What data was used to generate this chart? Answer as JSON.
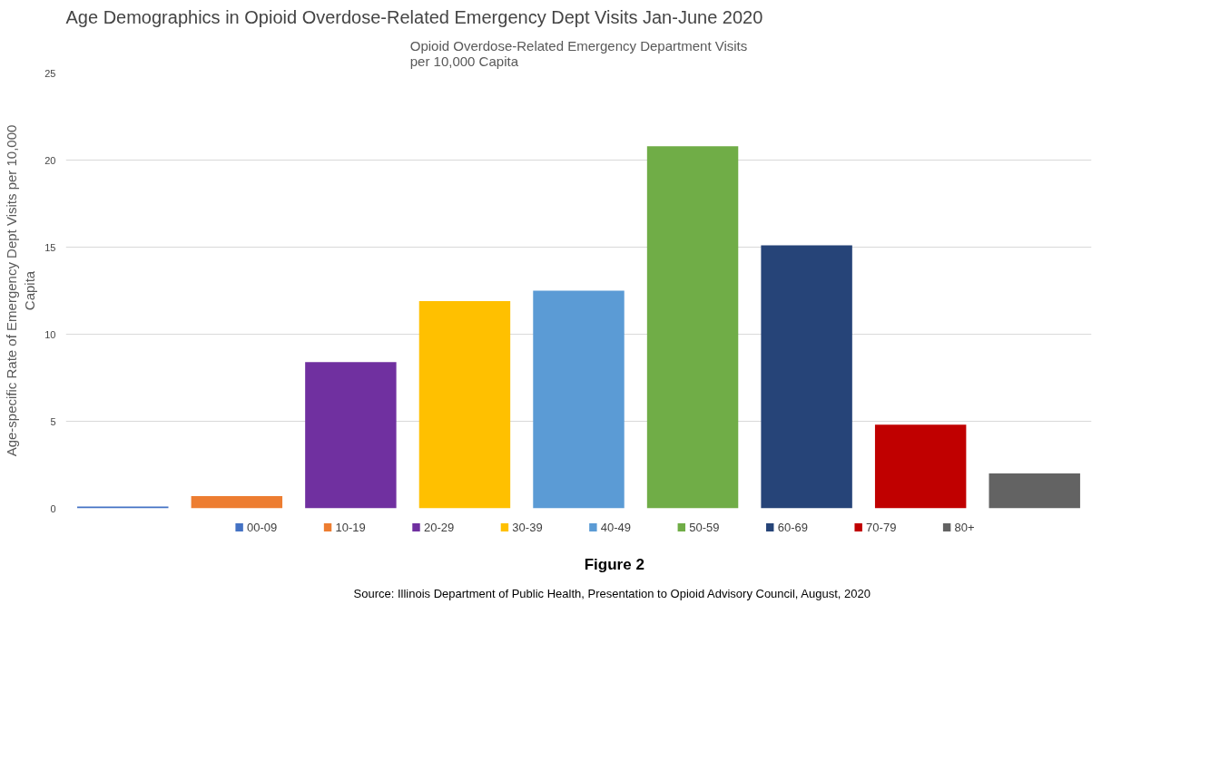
{
  "chart_data": {
    "type": "bar",
    "title": "Age Demographics in Opioid Overdose-Related Emergency Dept Visits Jan-June 2020",
    "subtitle": "Opioid Overdose-Related Emergency Department Visits\nper 10,000 Capita",
    "ylabel": "Age-specific Rate of Emergency Dept Visits per 10,000\nCapita",
    "categories": [
      null
    ],
    "series": [
      {
        "name": "00-09",
        "color": "#4472c4",
        "values": [
          0.1
        ]
      },
      {
        "name": "10-19",
        "color": "#ed7d31",
        "values": [
          0.7
        ]
      },
      {
        "name": "20-29",
        "color": "#7030a0",
        "values": [
          8.4
        ]
      },
      {
        "name": "30-39",
        "color": "#ffc000",
        "values": [
          11.9
        ]
      },
      {
        "name": "40-49",
        "color": "#5b9bd5",
        "values": [
          12.5
        ]
      },
      {
        "name": "50-59",
        "color": "#70ad47",
        "values": [
          20.8
        ]
      },
      {
        "name": "60-69",
        "color": "#264478",
        "values": [
          15.1
        ]
      },
      {
        "name": "70-79",
        "color": "#c00000",
        "values": [
          4.8
        ]
      },
      {
        "name": "80+",
        "color": "#636363",
        "values": [
          2.0
        ]
      }
    ],
    "ylim": [
      0,
      25
    ],
    "yticks": [
      0,
      5,
      10,
      15,
      20,
      25
    ],
    "grid": "y",
    "legend": "bottom",
    "tick_labels": "y",
    "annotations": [
      "Figure 2",
      "Source: Illinois Department of Public Health, Presentation to  Opioid Advisory Council, August, 2020"
    ]
  }
}
